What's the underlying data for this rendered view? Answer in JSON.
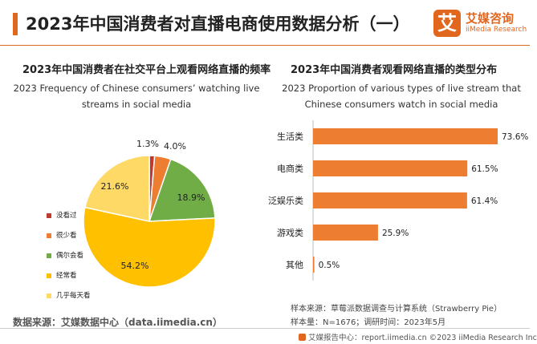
{
  "header": {
    "title": "2023年中国消费者对直播电商使用数据分析（一）",
    "logo_mark": "艾",
    "logo_cn": "艾媒咨询",
    "logo_en": "iiMedia Research"
  },
  "colors": {
    "accent": "#e2671e",
    "bar": "#ed7d31",
    "pie": [
      "#c0392b",
      "#ed7d31",
      "#70ad47",
      "#ffc000",
      "#ffd966"
    ]
  },
  "left_panel": {
    "title_cn": "2023年中国消费者在社交平台上观看网络直播的频率",
    "title_en_line1": "2023 Frequency of Chinese consumers’ watching live",
    "title_en_line2": "streams in social media"
  },
  "right_panel": {
    "title_cn": "2023年中国消费者观看网络直播的类型分布",
    "title_en_line1": "2023 Proportion of various types of live stream that",
    "title_en_line2": "Chinese consumers watch in social media"
  },
  "chart_data": [
    {
      "type": "pie",
      "legend_position": "left",
      "slices": [
        {
          "label": "没看过",
          "value": 1.3,
          "value_label": "1.3%"
        },
        {
          "label": "很少看",
          "value": 4.0,
          "value_label": "4.0%"
        },
        {
          "label": "偶尔会看",
          "value": 18.9,
          "value_label": "18.9%"
        },
        {
          "label": "经常看",
          "value": 54.2,
          "value_label": "54.2%"
        },
        {
          "label": "几乎每天看",
          "value": 21.6,
          "value_label": "21.6%"
        }
      ]
    },
    {
      "type": "bar",
      "orientation": "horizontal",
      "categories": [
        "生活类",
        "电商类",
        "泛娱乐类",
        "游戏类",
        "其他"
      ],
      "values": [
        73.6,
        61.5,
        61.4,
        25.9,
        0.5
      ],
      "value_labels": [
        "73.6%",
        "61.5%",
        "61.4%",
        "25.9%",
        "0.5%"
      ],
      "xlim": [
        0,
        80
      ],
      "grid": false
    }
  ],
  "notes": {
    "sample_source": "样本来源：草莓派数据调查与计算系统（Strawberry Pie）",
    "sample_size": "样本量：N=1676；调研时间：2023年5月"
  },
  "source": "数据来源：艾媒数据中心（data.iimedia.cn）",
  "footer": "艾媒报告中心：report.iimedia.cn  ©2023  iiMedia Research  Inc"
}
